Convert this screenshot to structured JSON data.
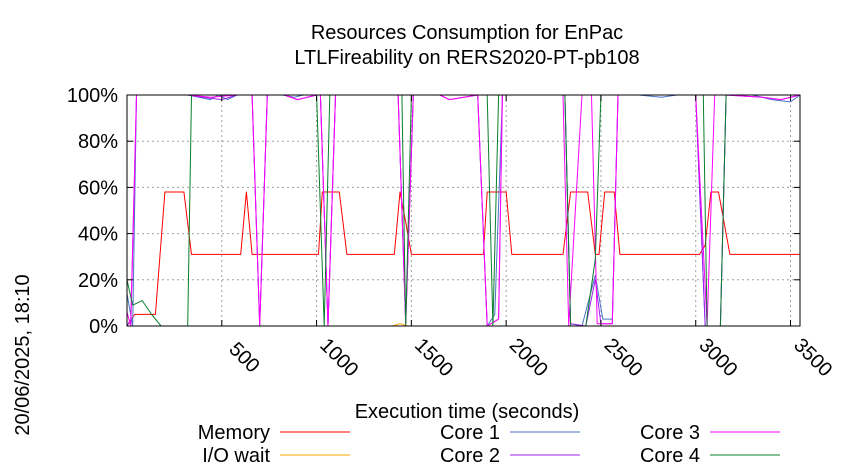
{
  "chart_data": {
    "type": "line",
    "title": [
      "Resources Consumption for EnPac",
      "LTLFireability on RERS2020-PT-pb108"
    ],
    "xlabel": "Execution time (seconds)",
    "ylabel": "",
    "side_label": "20/06/2025, 18:10",
    "xlim": [
      0,
      3550
    ],
    "ylim": [
      0,
      100
    ],
    "x_ticks": [
      500,
      1000,
      1500,
      2000,
      2500,
      3000,
      3500
    ],
    "y_ticks": [
      0,
      20,
      40,
      60,
      80,
      100
    ],
    "y_tick_labels": [
      "0%",
      "20%",
      "40%",
      "60%",
      "80%",
      "100%"
    ],
    "grid": true,
    "legend_position": "bottom",
    "series": [
      {
        "name": "Memory",
        "color": "#ff0000",
        "legend_col": 0,
        "legend_row": 0,
        "points": [
          [
            0,
            0
          ],
          [
            40,
            5
          ],
          [
            150,
            5
          ],
          [
            200,
            58
          ],
          [
            300,
            58
          ],
          [
            340,
            31
          ],
          [
            600,
            31
          ],
          [
            630,
            58
          ],
          [
            660,
            31
          ],
          [
            1010,
            31
          ],
          [
            1030,
            58
          ],
          [
            1120,
            58
          ],
          [
            1160,
            31
          ],
          [
            1410,
            31
          ],
          [
            1440,
            58
          ],
          [
            1470,
            45
          ],
          [
            1500,
            31
          ],
          [
            1880,
            31
          ],
          [
            1900,
            58
          ],
          [
            2000,
            58
          ],
          [
            2030,
            31
          ],
          [
            2300,
            31
          ],
          [
            2340,
            58
          ],
          [
            2430,
            58
          ],
          [
            2470,
            31
          ],
          [
            2490,
            31
          ],
          [
            2520,
            58
          ],
          [
            2570,
            58
          ],
          [
            2600,
            31
          ],
          [
            3020,
            31
          ],
          [
            3050,
            35
          ],
          [
            3080,
            58
          ],
          [
            3120,
            58
          ],
          [
            3180,
            31
          ],
          [
            3550,
            31
          ]
        ]
      },
      {
        "name": "I/O wait",
        "color": "#ffa500",
        "legend_col": 0,
        "legend_row": 1,
        "points": [
          [
            0,
            0
          ],
          [
            1400,
            0
          ],
          [
            1440,
            1
          ],
          [
            1480,
            0
          ],
          [
            3550,
            0
          ]
        ]
      },
      {
        "name": "Core 1",
        "color": "#4a73c6",
        "legend_col": 1,
        "legend_row": 0,
        "points": [
          [
            0,
            14
          ],
          [
            30,
            0
          ],
          [
            50,
            100
          ],
          [
            320,
            100
          ],
          [
            380,
            99
          ],
          [
            440,
            98
          ],
          [
            480,
            100
          ],
          [
            530,
            98
          ],
          [
            580,
            100
          ],
          [
            660,
            100
          ],
          [
            700,
            0
          ],
          [
            740,
            100
          ],
          [
            820,
            100
          ],
          [
            880,
            99
          ],
          [
            930,
            100
          ],
          [
            980,
            100
          ],
          [
            1020,
            100
          ],
          [
            1060,
            0
          ],
          [
            1100,
            100
          ],
          [
            1200,
            100
          ],
          [
            1300,
            100
          ],
          [
            1430,
            100
          ],
          [
            1470,
            3
          ],
          [
            1510,
            100
          ],
          [
            1600,
            100
          ],
          [
            1700,
            100
          ],
          [
            1850,
            100
          ],
          [
            1900,
            0
          ],
          [
            1940,
            5
          ],
          [
            1980,
            100
          ],
          [
            2100,
            100
          ],
          [
            2200,
            100
          ],
          [
            2310,
            100
          ],
          [
            2340,
            1
          ],
          [
            2400,
            0
          ],
          [
            2470,
            22
          ],
          [
            2510,
            3
          ],
          [
            2560,
            3
          ],
          [
            2590,
            100
          ],
          [
            2700,
            100
          ],
          [
            2820,
            99
          ],
          [
            2900,
            100
          ],
          [
            3000,
            100
          ],
          [
            3050,
            0
          ],
          [
            3130,
            0
          ],
          [
            3160,
            100
          ],
          [
            3300,
            100
          ],
          [
            3400,
            98
          ],
          [
            3500,
            97
          ],
          [
            3550,
            100
          ]
        ]
      },
      {
        "name": "Core 2",
        "color": "#a020f0",
        "legend_col": 1,
        "legend_row": 1,
        "points": [
          [
            0,
            0
          ],
          [
            20,
            3
          ],
          [
            50,
            100
          ],
          [
            320,
            100
          ],
          [
            400,
            99
          ],
          [
            500,
            98
          ],
          [
            580,
            100
          ],
          [
            660,
            100
          ],
          [
            700,
            0
          ],
          [
            740,
            100
          ],
          [
            830,
            100
          ],
          [
            900,
            98
          ],
          [
            1000,
            100
          ],
          [
            1020,
            100
          ],
          [
            1060,
            0
          ],
          [
            1100,
            100
          ],
          [
            1200,
            100
          ],
          [
            1300,
            100
          ],
          [
            1430,
            100
          ],
          [
            1470,
            1
          ],
          [
            1510,
            100
          ],
          [
            1650,
            100
          ],
          [
            1700,
            98
          ],
          [
            1850,
            100
          ],
          [
            1900,
            0
          ],
          [
            1960,
            3
          ],
          [
            1980,
            100
          ],
          [
            2200,
            100
          ],
          [
            2310,
            100
          ],
          [
            2340,
            1
          ],
          [
            2420,
            0
          ],
          [
            2470,
            20
          ],
          [
            2500,
            1
          ],
          [
            2560,
            1
          ],
          [
            2590,
            100
          ],
          [
            2700,
            100
          ],
          [
            2900,
            100
          ],
          [
            3000,
            100
          ],
          [
            3050,
            0
          ],
          [
            3130,
            0
          ],
          [
            3160,
            100
          ],
          [
            3350,
            99
          ],
          [
            3450,
            98
          ],
          [
            3550,
            100
          ]
        ]
      },
      {
        "name": "Core 3",
        "color": "#ff00ff",
        "legend_col": 2,
        "legend_row": 0,
        "points": [
          [
            0,
            6
          ],
          [
            20,
            0
          ],
          [
            50,
            100
          ],
          [
            320,
            100
          ],
          [
            440,
            99
          ],
          [
            580,
            100
          ],
          [
            660,
            100
          ],
          [
            700,
            0
          ],
          [
            740,
            100
          ],
          [
            830,
            100
          ],
          [
            900,
            98
          ],
          [
            1000,
            100
          ],
          [
            1020,
            100
          ],
          [
            1060,
            0
          ],
          [
            1100,
            100
          ],
          [
            1200,
            100
          ],
          [
            1300,
            100
          ],
          [
            1430,
            100
          ],
          [
            1470,
            1
          ],
          [
            1510,
            100
          ],
          [
            1650,
            100
          ],
          [
            1700,
            98
          ],
          [
            1850,
            100
          ],
          [
            1900,
            0
          ],
          [
            1960,
            3
          ],
          [
            1980,
            100
          ],
          [
            2200,
            100
          ],
          [
            2300,
            100
          ],
          [
            2330,
            0
          ],
          [
            2400,
            100
          ],
          [
            2450,
            100
          ],
          [
            2480,
            1
          ],
          [
            2560,
            1
          ],
          [
            2590,
            100
          ],
          [
            2700,
            100
          ],
          [
            2900,
            100
          ],
          [
            3000,
            100
          ],
          [
            3060,
            0
          ],
          [
            3100,
            100
          ],
          [
            3120,
            100
          ],
          [
            3160,
            100
          ],
          [
            3350,
            99
          ],
          [
            3450,
            98
          ],
          [
            3550,
            100
          ]
        ]
      },
      {
        "name": "Core 4",
        "color": "#0a7f2c",
        "legend_col": 2,
        "legend_row": 1,
        "points": [
          [
            0,
            20
          ],
          [
            30,
            9
          ],
          [
            80,
            11
          ],
          [
            130,
            5
          ],
          [
            180,
            0
          ],
          [
            320,
            0
          ],
          [
            340,
            100
          ],
          [
            500,
            100
          ],
          [
            640,
            100
          ],
          [
            660,
            100
          ],
          [
            700,
            100
          ],
          [
            1000,
            100
          ],
          [
            1040,
            0
          ],
          [
            1070,
            100
          ],
          [
            1150,
            100
          ],
          [
            1450,
            100
          ],
          [
            1470,
            0
          ],
          [
            1500,
            100
          ],
          [
            1650,
            100
          ],
          [
            1900,
            100
          ],
          [
            1930,
            0
          ],
          [
            1960,
            100
          ],
          [
            2200,
            100
          ],
          [
            2310,
            100
          ],
          [
            2340,
            0
          ],
          [
            2360,
            0
          ],
          [
            2420,
            0
          ],
          [
            2470,
            29
          ],
          [
            2500,
            100
          ],
          [
            2700,
            100
          ],
          [
            2900,
            100
          ],
          [
            3000,
            100
          ],
          [
            3040,
            100
          ],
          [
            3060,
            0
          ],
          [
            3130,
            0
          ],
          [
            3160,
            100
          ],
          [
            3550,
            100
          ]
        ]
      }
    ]
  }
}
